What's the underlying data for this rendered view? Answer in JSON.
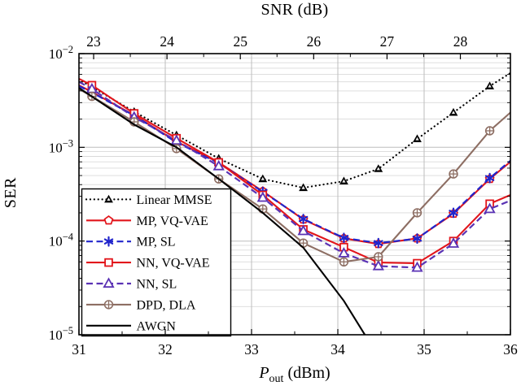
{
  "page": {
    "background": "#ffffff"
  },
  "chart_data": {
    "type": "line",
    "top_axis": {
      "label": "SNR (dB)",
      "ticks": [
        {
          "label": "23",
          "x": 31.17
        },
        {
          "label": "24",
          "x": 32.02
        },
        {
          "label": "25",
          "x": 32.87
        },
        {
          "label": "26",
          "x": 33.72
        },
        {
          "label": "27",
          "x": 34.57
        },
        {
          "label": "28",
          "x": 35.42
        }
      ],
      "minor_ticks_x": [
        31.595,
        32.445,
        33.295,
        34.145,
        34.995,
        35.845
      ]
    },
    "x_axis": {
      "label_main": "P",
      "label_sub": "out",
      "label_unit": " (dBm)",
      "min": 31,
      "max": 36,
      "ticks": [
        {
          "label": "31",
          "x": 31
        },
        {
          "label": "32",
          "x": 32
        },
        {
          "label": "33",
          "x": 33
        },
        {
          "label": "34",
          "x": 34
        },
        {
          "label": "35",
          "x": 35
        },
        {
          "label": "36",
          "x": 36
        }
      ],
      "minor_ticks_x": [
        31.5,
        32.5,
        33.5,
        34.5,
        35.5
      ]
    },
    "y_axis": {
      "label": "SER",
      "scale": "log",
      "min": 1e-05,
      "max": 0.01,
      "ticks": [
        {
          "mantissa": "10",
          "exponent": "−2",
          "value": 0.01
        },
        {
          "mantissa": "10",
          "exponent": "−3",
          "value": 0.001
        },
        {
          "mantissa": "10",
          "exponent": "−4",
          "value": 0.0001
        },
        {
          "mantissa": "10",
          "exponent": "−5",
          "value": 1e-05
        }
      ]
    },
    "grid": {
      "minor_color": "#dadada",
      "major_color": "#bdbdbd"
    },
    "legend": {
      "position": "south west"
    },
    "series": [
      {
        "id": "linear_mmse",
        "label": "Linear MMSE",
        "color": "#000000",
        "line": "dotted",
        "marker": "triangle-filled",
        "x": [
          31.0,
          31.15,
          31.64,
          32.13,
          32.62,
          33.13,
          33.6,
          34.07,
          34.47,
          34.92,
          35.34,
          35.76,
          36.0
        ],
        "y": [
          0.0053,
          0.0044,
          0.0024,
          0.00135,
          0.00076,
          0.00046,
          0.00037,
          0.000435,
          0.00059,
          0.00123,
          0.00235,
          0.0045,
          0.0062
        ]
      },
      {
        "id": "mp_vqvae",
        "label": "MP, VQ-VAE",
        "color": "#e2151b",
        "line": "solid",
        "marker": "pentagon",
        "x": [
          31.0,
          31.15,
          31.64,
          32.13,
          32.62,
          33.13,
          33.6,
          34.07,
          34.47,
          34.92,
          35.34,
          35.76,
          36.0
        ],
        "y": [
          0.0046,
          0.0039,
          0.0022,
          0.00115,
          0.00069,
          0.00034,
          0.00017,
          0.000107,
          9.3e-05,
          0.000107,
          0.000196,
          0.00046,
          0.0007
        ]
      },
      {
        "id": "mp_sl",
        "label": "MP, SL",
        "color": "#2125cc",
        "line": "dashed",
        "marker": "asterisk",
        "x": [
          31.0,
          31.15,
          31.64,
          32.13,
          32.62,
          33.13,
          33.6,
          34.07,
          34.47,
          34.92,
          35.34,
          35.76,
          36.0
        ],
        "y": [
          0.0045,
          0.00385,
          0.00218,
          0.00113,
          0.00068,
          0.000335,
          0.000172,
          0.000108,
          9.5e-05,
          0.000106,
          0.0002,
          0.00047,
          0.00072
        ]
      },
      {
        "id": "nn_vqvae",
        "label": "NN, VQ-VAE",
        "color": "#e2151b",
        "line": "solid",
        "marker": "square",
        "x": [
          31.0,
          31.15,
          31.64,
          32.13,
          32.62,
          33.13,
          33.6,
          34.07,
          34.47,
          34.92,
          35.34,
          35.76,
          36.0
        ],
        "y": [
          0.0054,
          0.0046,
          0.0023,
          0.00125,
          0.00069,
          0.00031,
          0.000133,
          8.6e-05,
          5.9e-05,
          5.8e-05,
          0.0001,
          0.00025,
          0.00031
        ]
      },
      {
        "id": "nn_sl",
        "label": "NN, SL",
        "color": "#5a32b4",
        "line": "dashed",
        "marker": "triangle-open",
        "x": [
          31.0,
          31.15,
          31.64,
          32.13,
          32.62,
          33.13,
          33.6,
          34.07,
          34.47,
          34.92,
          35.34,
          35.76,
          36.0
        ],
        "y": [
          0.005,
          0.0042,
          0.0021,
          0.00118,
          0.00063,
          0.00029,
          0.000128,
          7.4e-05,
          5.4e-05,
          5.2e-05,
          9.4e-05,
          0.00022,
          0.00027
        ]
      },
      {
        "id": "dpd_dla",
        "label": "DPD, DLA",
        "color": "#8d6e63",
        "line": "solid",
        "marker": "circle-plus",
        "x": [
          31.0,
          31.15,
          31.64,
          32.13,
          32.62,
          33.13,
          33.6,
          34.07,
          34.47,
          34.92,
          35.34,
          35.76,
          36.0
        ],
        "y": [
          0.0042,
          0.0035,
          0.00187,
          0.00097,
          0.00046,
          0.00022,
          9.5e-05,
          6e-05,
          6.8e-05,
          0.0002,
          0.00052,
          0.0015,
          0.00235
        ]
      },
      {
        "id": "awgn",
        "label": "AWGN",
        "color": "#000000",
        "line": "solid",
        "marker": "none",
        "x": [
          31.0,
          31.64,
          32.13,
          32.62,
          33.13,
          33.6,
          34.07,
          34.36
        ],
        "y": [
          0.0043,
          0.00175,
          0.001,
          0.00046,
          0.0002,
          8.5e-05,
          2.3e-05,
          8.5e-06
        ]
      }
    ]
  }
}
